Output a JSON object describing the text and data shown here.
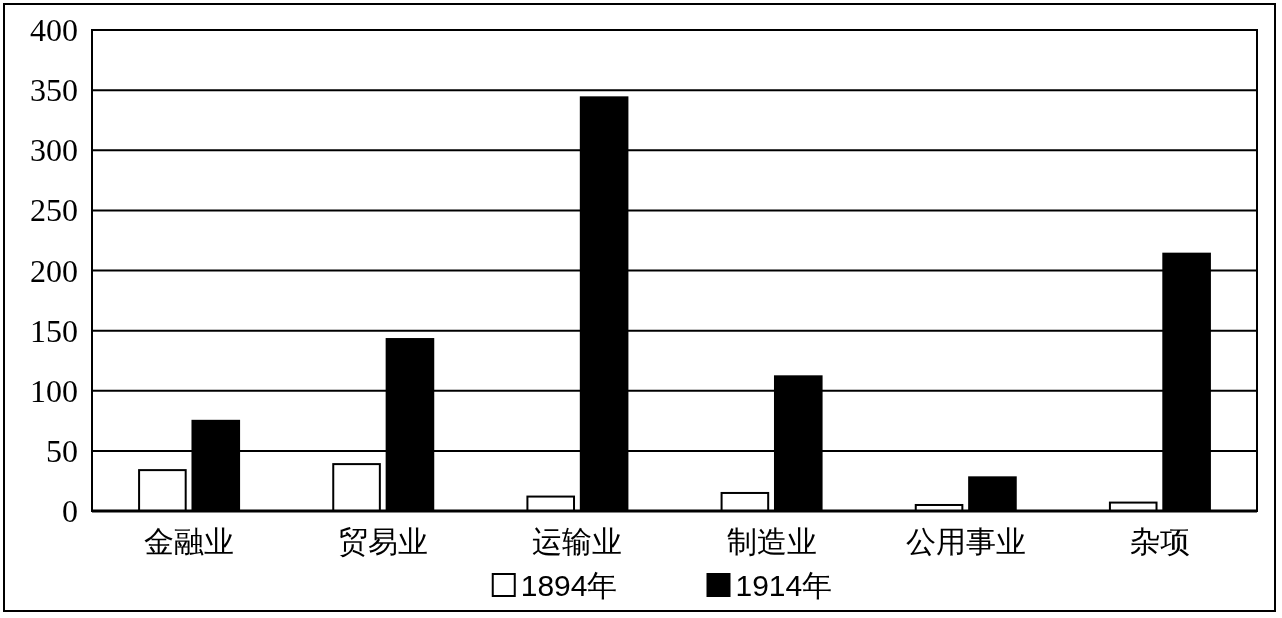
{
  "chart_data": {
    "type": "bar",
    "categories": [
      "金融业",
      "贸易业",
      "运输业",
      "制造业",
      "公用事业",
      "杂项"
    ],
    "series": [
      {
        "name": "1894年",
        "color": "#ffffff",
        "values": [
          34,
          39,
          12,
          15,
          5,
          7
        ]
      },
      {
        "name": "1914年",
        "color": "#000000",
        "values": [
          75,
          143,
          344,
          112,
          28,
          214
        ]
      }
    ],
    "ylim": [
      0,
      400
    ],
    "yticks": [
      0,
      50,
      100,
      150,
      200,
      250,
      300,
      350,
      400
    ],
    "grid": "y",
    "legend": "bottom"
  }
}
